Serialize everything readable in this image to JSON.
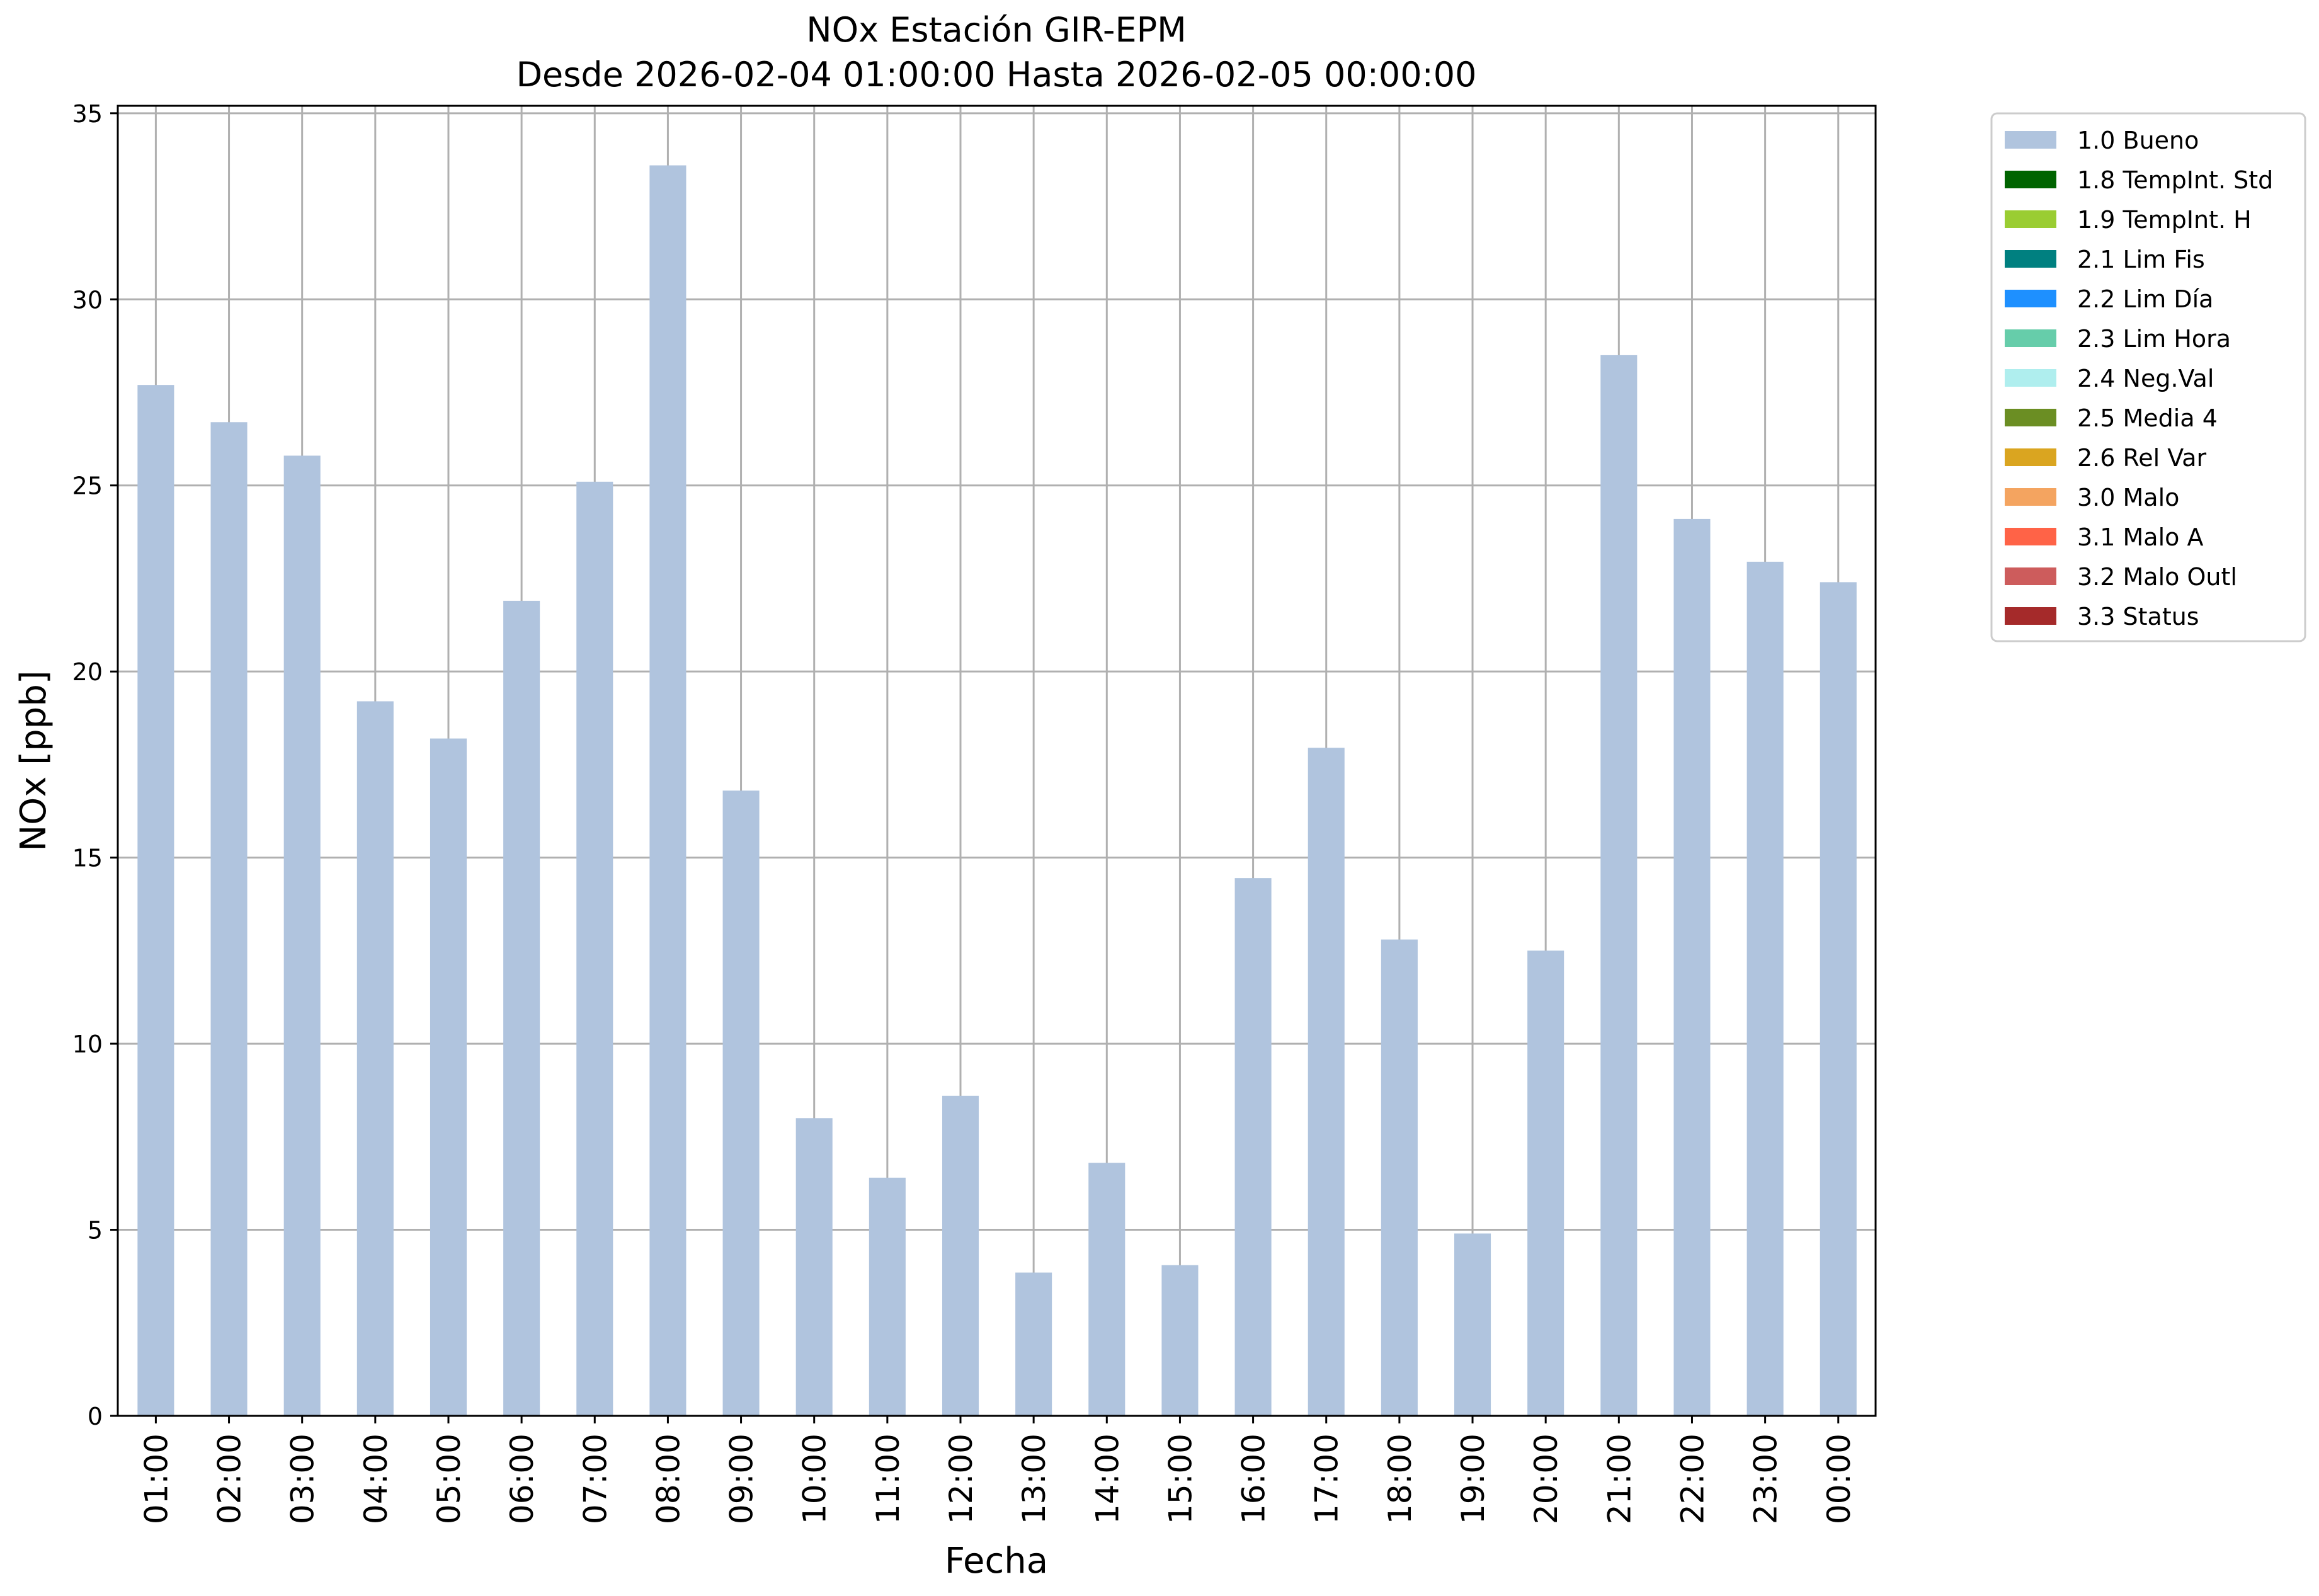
{
  "chart_data": {
    "type": "bar",
    "title": "NOx Estación GIR-EPM",
    "subtitle": "Desde 2026-02-04 01:00:00 Hasta 2026-02-05 00:00:00",
    "xlabel": "Fecha",
    "ylabel": "NOx [ppb]",
    "ylim": [
      0,
      35.2
    ],
    "yticks": [
      0,
      5,
      10,
      15,
      20,
      25,
      30,
      35
    ],
    "grid": true,
    "legend_position": "outside-top-right",
    "categories": [
      "01:00",
      "02:00",
      "03:00",
      "04:00",
      "05:00",
      "06:00",
      "07:00",
      "08:00",
      "09:00",
      "10:00",
      "11:00",
      "12:00",
      "13:00",
      "14:00",
      "15:00",
      "16:00",
      "17:00",
      "18:00",
      "19:00",
      "20:00",
      "21:00",
      "22:00",
      "23:00",
      "00:00"
    ],
    "series": [
      {
        "name": "1.0 Bueno",
        "color": "#b0c4de",
        "values": [
          27.7,
          26.7,
          25.8,
          19.2,
          18.2,
          21.9,
          25.1,
          33.6,
          16.8,
          8.0,
          6.4,
          8.6,
          3.85,
          6.8,
          4.05,
          14.45,
          17.95,
          12.8,
          4.9,
          12.5,
          28.5,
          24.1,
          22.95,
          22.4
        ]
      }
    ],
    "legend": [
      {
        "label": "1.0 Bueno",
        "color": "#b0c4de"
      },
      {
        "label": "1.8 TempInt. Std",
        "color": "#006400"
      },
      {
        "label": "1.9 TempInt. H",
        "color": "#9acd32"
      },
      {
        "label": "2.1 Lim Fis",
        "color": "#008080"
      },
      {
        "label": "2.2 Lim Día",
        "color": "#1e90ff"
      },
      {
        "label": "2.3 Lim Hora",
        "color": "#66cdaa"
      },
      {
        "label": "2.4 Neg.Val",
        "color": "#afeeee"
      },
      {
        "label": "2.5 Media 4",
        "color": "#6b8e23"
      },
      {
        "label": "2.6 Rel Var",
        "color": "#daa520"
      },
      {
        "label": "3.0 Malo",
        "color": "#f4a460"
      },
      {
        "label": "3.1 Malo A",
        "color": "#ff6347"
      },
      {
        "label": "3.2 Malo Outl",
        "color": "#cd5c5c"
      },
      {
        "label": "3.3 Status",
        "color": "#a52a2a"
      }
    ]
  }
}
